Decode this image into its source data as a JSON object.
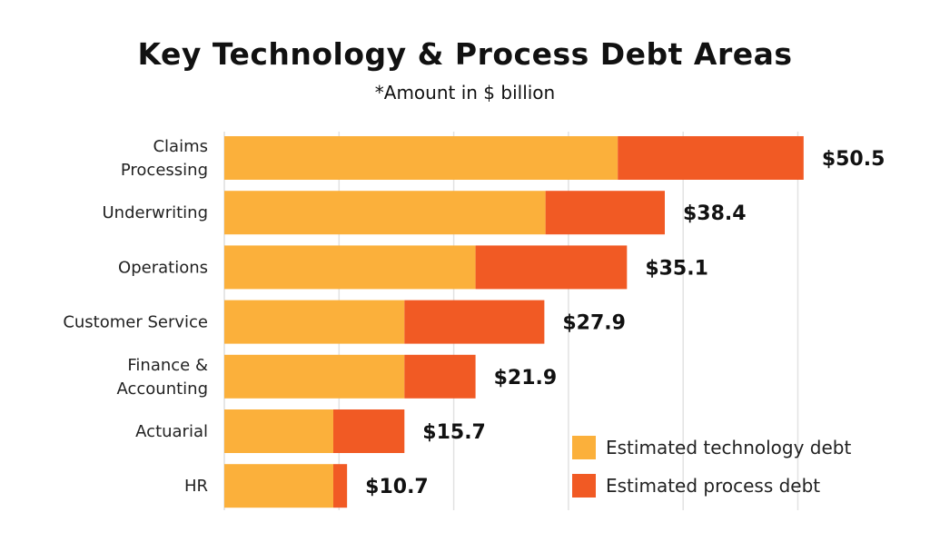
{
  "chart_data": {
    "type": "bar",
    "orientation": "horizontal",
    "stacked": true,
    "title": "Key Technology & Process Debt Areas",
    "subtitle": "*Amount in $ billion",
    "xlabel": "",
    "ylabel": "",
    "xlim": [
      0,
      52
    ],
    "grid": true,
    "gridlines_at": [
      10,
      20,
      30,
      40,
      50
    ],
    "legend_position": "bottom-right",
    "categories": [
      [
        "Claims",
        "Processing"
      ],
      [
        "Underwriting"
      ],
      [
        "Operations"
      ],
      [
        "Customer Service"
      ],
      [
        "Finance &",
        "Accounting"
      ],
      [
        "Actuarial"
      ],
      [
        "HR"
      ]
    ],
    "series": [
      {
        "name": "Estimated technology debt",
        "color": "#FBB03B",
        "values": [
          34.3,
          28.0,
          21.9,
          15.7,
          15.7,
          9.5,
          9.5
        ]
      },
      {
        "name": "Estimated process debt",
        "color": "#F15A24",
        "values": [
          16.2,
          10.4,
          13.2,
          12.2,
          6.2,
          6.2,
          1.2
        ]
      }
    ],
    "totals": [
      50.5,
      38.4,
      35.1,
      27.9,
      21.9,
      15.7,
      10.7
    ],
    "total_labels": [
      "$50.5",
      "$38.4",
      "$35.1",
      "$27.9",
      "$21.9",
      "$15.7",
      "$10.7"
    ]
  }
}
